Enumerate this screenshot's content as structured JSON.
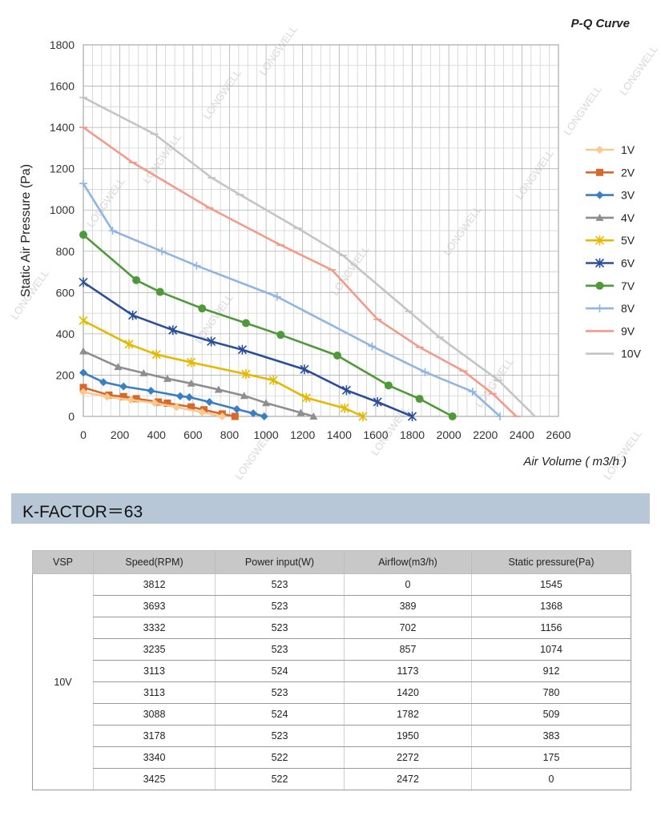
{
  "chart_data": {
    "type": "line",
    "title": "P-Q Curve",
    "xlabel": "Air Volume ( m3/h )",
    "ylabel": "Static Air Pressure  (Pa)",
    "xlim": [
      0,
      2600
    ],
    "ylim": [
      0,
      1800
    ],
    "x_ticks": [
      "0",
      "200",
      "400",
      "600",
      "800",
      "1000",
      "1200",
      "1400",
      "1600",
      "1800",
      "2000",
      "2200",
      "2400",
      "2600"
    ],
    "y_ticks": [
      "0",
      "200",
      "400",
      "600",
      "800",
      "1000",
      "1200",
      "1400",
      "1600",
      "1800"
    ],
    "grid": true,
    "legend_position": "right",
    "series": [
      {
        "name": "1V",
        "color": "#f9c98f",
        "marker": "diamond",
        "x": [
          0,
          130,
          260,
          390,
          510,
          650,
          760
        ],
        "y": [
          118,
          95,
          80,
          65,
          45,
          20,
          0
        ]
      },
      {
        "name": "2V",
        "color": "#d9692a",
        "marker": "square",
        "x": [
          0,
          140,
          220,
          290,
          410,
          460,
          590,
          660,
          760,
          830
        ],
        "y": [
          140,
          103,
          96,
          86,
          70,
          64,
          46,
          32,
          12,
          0
        ]
      },
      {
        "name": "3V",
        "color": "#3a7fc1",
        "marker": "diamond",
        "x": [
          0,
          110,
          220,
          370,
          530,
          580,
          690,
          840,
          930,
          990
        ],
        "y": [
          212,
          166,
          145,
          124,
          98,
          93,
          70,
          35,
          15,
          0
        ]
      },
      {
        "name": "4V",
        "color": "#8e8e8e",
        "marker": "triangle",
        "x": [
          0,
          190,
          330,
          460,
          590,
          740,
          880,
          1000,
          1190,
          1260
        ],
        "y": [
          316,
          240,
          210,
          183,
          160,
          130,
          100,
          65,
          18,
          0
        ]
      },
      {
        "name": "5V",
        "color": "#e6b800",
        "marker": "star",
        "x": [
          0,
          250,
          400,
          590,
          890,
          1040,
          1220,
          1430,
          1530
        ],
        "y": [
          464,
          350,
          300,
          262,
          205,
          175,
          90,
          40,
          0
        ]
      },
      {
        "name": "6V",
        "color": "#2b4e9a",
        "marker": "star",
        "x": [
          0,
          270,
          490,
          700,
          870,
          1210,
          1440,
          1610,
          1800
        ],
        "y": [
          650,
          490,
          418,
          363,
          323,
          228,
          127,
          70,
          0
        ]
      },
      {
        "name": "7V",
        "color": "#4e9a3a",
        "marker": "circle",
        "x": [
          0,
          290,
          420,
          650,
          890,
          1080,
          1390,
          1670,
          1840,
          2020
        ],
        "y": [
          880,
          660,
          603,
          523,
          452,
          395,
          295,
          150,
          85,
          0
        ]
      },
      {
        "name": "8V",
        "color": "#8fb5e0",
        "marker": "plus",
        "x": [
          0,
          160,
          430,
          620,
          1060,
          1580,
          1870,
          2130,
          2280
        ],
        "y": [
          1128,
          900,
          800,
          730,
          580,
          340,
          215,
          120,
          0
        ]
      },
      {
        "name": "9V",
        "color": "#f29b8a",
        "marker": "line",
        "x": [
          0,
          270,
          690,
          1080,
          1360,
          1610,
          1840,
          2080,
          2240,
          2370
        ],
        "y": [
          1400,
          1230,
          1010,
          830,
          710,
          470,
          335,
          220,
          110,
          0
        ]
      },
      {
        "name": "10V",
        "color": "#c4c4c4",
        "marker": "line",
        "x": [
          0,
          389,
          702,
          857,
          1173,
          1420,
          1782,
          1950,
          2272,
          2472
        ],
        "y": [
          1545,
          1368,
          1156,
          1074,
          912,
          780,
          509,
          383,
          175,
          0
        ]
      }
    ]
  },
  "watermark": "LONGWELL",
  "kfactor": "K-FACTOR＝63",
  "table": {
    "headers": [
      "VSP",
      "Speed(RPM)",
      "Power input(W)",
      "Airflow(m3/h)",
      "Static  pressure(Pa)"
    ],
    "vsp": "10V",
    "rows": [
      [
        "3812",
        "523",
        "0",
        "1545"
      ],
      [
        "3693",
        "523",
        "389",
        "1368"
      ],
      [
        "3332",
        "523",
        "702",
        "1156"
      ],
      [
        "3235",
        "523",
        "857",
        "1074"
      ],
      [
        "3113",
        "524",
        "1173",
        "912"
      ],
      [
        "3113",
        "523",
        "1420",
        "780"
      ],
      [
        "3088",
        "524",
        "1782",
        "509"
      ],
      [
        "3178",
        "523",
        "1950",
        "383"
      ],
      [
        "3340",
        "522",
        "2272",
        "175"
      ],
      [
        "3425",
        "522",
        "2472",
        "0"
      ]
    ]
  }
}
